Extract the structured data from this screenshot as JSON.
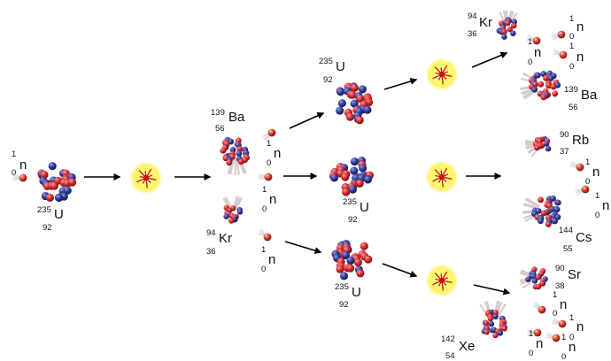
{
  "colors": {
    "proton": "#d4282c",
    "neutron": "#2f3a96",
    "neutron_particle": "#d23a2a",
    "flash_glow": "#ffff66",
    "flash_core": "#cc1111",
    "arrow": "#000000"
  },
  "particles": {
    "incoming_neutron": {
      "symbol": "n",
      "mass": "1",
      "atomic": "0"
    },
    "u235_initial": {
      "symbol": "U",
      "mass": "235",
      "atomic": "92"
    },
    "ba139_gen1": {
      "symbol": "Ba",
      "mass": "139",
      "atomic": "56"
    },
    "kr94_gen1": {
      "symbol": "Kr",
      "mass": "94",
      "atomic": "36"
    },
    "neutron_gen1_a": {
      "symbol": "n",
      "mass": "1",
      "atomic": "0"
    },
    "neutron_gen1_b": {
      "symbol": "n",
      "mass": "1",
      "atomic": "0"
    },
    "neutron_gen1_c": {
      "symbol": "n",
      "mass": "1",
      "atomic": "0"
    },
    "u235_gen2_top": {
      "symbol": "U",
      "mass": "235",
      "atomic": "92"
    },
    "u235_gen2_mid": {
      "symbol": "U",
      "mass": "235",
      "atomic": "92"
    },
    "u235_gen2_bot": {
      "symbol": "U",
      "mass": "235",
      "atomic": "92"
    },
    "kr94_gen3": {
      "symbol": "Kr",
      "mass": "94",
      "atomic": "36"
    },
    "neutron_gen3_a": {
      "symbol": "n",
      "mass": "1",
      "atomic": "0"
    },
    "neutron_gen3_b": {
      "symbol": "n",
      "mass": "1",
      "atomic": "0"
    },
    "neutron_gen3_c": {
      "symbol": "n",
      "mass": "1",
      "atomic": "0"
    },
    "ba139_gen3": {
      "symbol": "Ba",
      "mass": "139",
      "atomic": "56"
    },
    "rb90_gen3": {
      "symbol": "Rb",
      "mass": "90",
      "atomic": "37"
    },
    "neutron_gen3_d": {
      "symbol": "n",
      "mass": "1",
      "atomic": "0"
    },
    "neutron_gen3_e": {
      "symbol": "n",
      "mass": "1",
      "atomic": "0"
    },
    "cs144_gen3": {
      "symbol": "Cs",
      "mass": "144",
      "atomic": "55"
    },
    "sr90_gen3": {
      "symbol": "Sr",
      "mass": "90",
      "atomic": "38"
    },
    "neutron_gen3_f": {
      "symbol": "n",
      "mass": "1",
      "atomic": "0"
    },
    "neutron_gen3_g": {
      "symbol": "n",
      "mass": "1",
      "atomic": "0"
    },
    "neutron_gen3_h": {
      "symbol": "n",
      "mass": "1",
      "atomic": "0"
    },
    "neutron_gen3_i": {
      "symbol": "n",
      "mass": "1",
      "atomic": "0"
    },
    "xe142_gen3": {
      "symbol": "Xe",
      "mass": "142",
      "atomic": "54"
    }
  }
}
